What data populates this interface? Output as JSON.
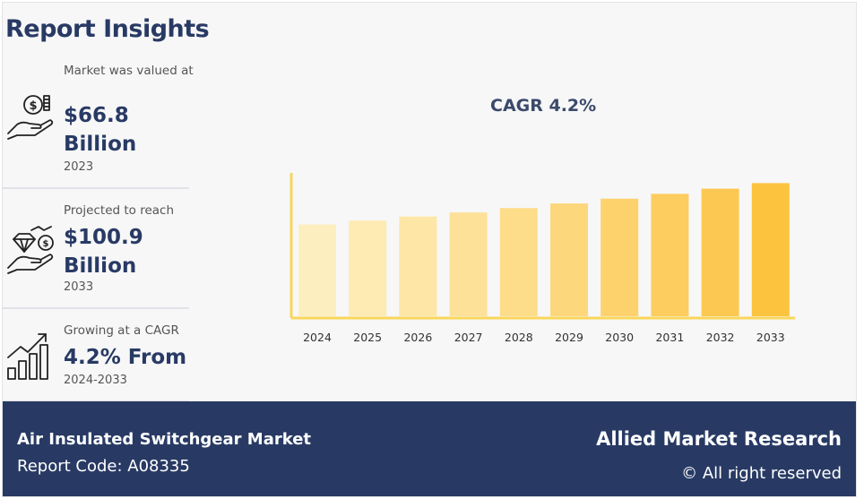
{
  "page": {
    "title": "Report Insights"
  },
  "stats": [
    {
      "label": "Market was valued at",
      "value": "$66.8 Billion",
      "year": "2023",
      "icon": "money-hand-icon"
    },
    {
      "label": "Projected to reach",
      "value": "$100.9 Billion",
      "year": "2033",
      "icon": "diamond-hand-icon"
    },
    {
      "label": "Growing at a CAGR",
      "value": "4.2% From",
      "year": "2024-2033",
      "icon": "growth-bars-icon"
    }
  ],
  "chart_data": {
    "type": "bar",
    "title": "CAGR 4.2%",
    "categories": [
      "2024",
      "2025",
      "2026",
      "2027",
      "2028",
      "2029",
      "2030",
      "2031",
      "2032",
      "2033"
    ],
    "values": [
      69.6,
      72.5,
      75.6,
      78.7,
      82.0,
      85.5,
      89.1,
      92.8,
      96.7,
      100.9
    ],
    "xlabel": "",
    "ylabel": "",
    "ylim": [
      0,
      110
    ],
    "grid": false,
    "bar_colors": [
      "#fdeec0",
      "#fdebb3",
      "#fde6a6",
      "#fde199",
      "#fddc8a",
      "#fdd77c",
      "#fdd26d",
      "#fdcd5f",
      "#fdc851",
      "#fcc33e"
    ],
    "axis_color": "#f9d65a"
  },
  "footer": {
    "market_name": "Air Insulated Switchgear Market",
    "report_code": "Report Code: A08335",
    "brand": "Allied Market Research",
    "rights": "© All right reserved"
  }
}
